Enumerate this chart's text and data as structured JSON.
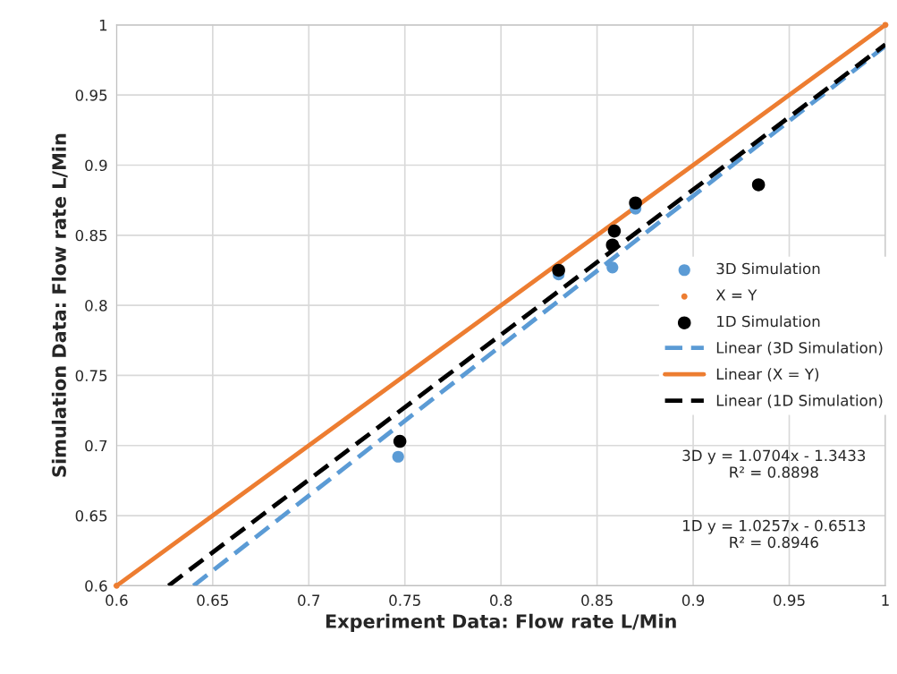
{
  "chart_data": {
    "type": "scatter",
    "xlabel": "Experiment Data: Flow rate L/Min",
    "ylabel": "Simulation Data: Flow rate L/Min",
    "xlim": [
      0.6,
      1
    ],
    "ylim": [
      0.6,
      1
    ],
    "xticks": [
      0.6,
      0.65,
      0.7,
      0.75,
      0.8,
      0.85,
      0.9,
      0.95,
      1
    ],
    "yticks": [
      0.6,
      0.65,
      0.7,
      0.75,
      0.8,
      0.85,
      0.9,
      0.95,
      1
    ],
    "grid": true,
    "legend": "right",
    "series": [
      {
        "name": "3D Simulation",
        "color": "#5b9bd5",
        "marker": "circle",
        "x": [
          0.7465,
          0.83,
          0.858,
          0.87
        ],
        "values": [
          0.692,
          0.822,
          0.827,
          0.869
        ]
      },
      {
        "name": "X = Y",
        "color": "#ed7d31",
        "marker": "circle",
        "x": [
          0.6,
          1
        ],
        "values": [
          0.6,
          1
        ]
      },
      {
        "name": "1D Simulation",
        "color": "#000000",
        "marker": "circle",
        "x": [
          0.7474,
          0.83,
          0.858,
          0.859,
          0.87,
          0.934
        ],
        "values": [
          0.703,
          0.825,
          0.843,
          0.853,
          0.873,
          0.886
        ]
      },
      {
        "name": "Linear (3D Simulation)",
        "color": "#5b9bd5",
        "type": "line",
        "line_style": "dashed",
        "x": [
          0.64,
          1
        ],
        "values": [
          0.6,
          0.985
        ]
      },
      {
        "name": "Linear (X = Y)",
        "color": "#ed7d31",
        "type": "line",
        "line_style": "solid",
        "x": [
          0.6,
          1
        ],
        "values": [
          0.6,
          1
        ]
      },
      {
        "name": "Linear (1D Simulation)",
        "color": "#000000",
        "type": "line",
        "line_style": "dashed",
        "x": [
          0.627,
          1
        ],
        "values": [
          0.6,
          0.986
        ]
      }
    ],
    "annotations": [
      "3D y = 1.0704x - 1.3433\nR² = 0.8898",
      "1D y = 1.0257x - 0.6513\nR² = 0.8946"
    ]
  }
}
